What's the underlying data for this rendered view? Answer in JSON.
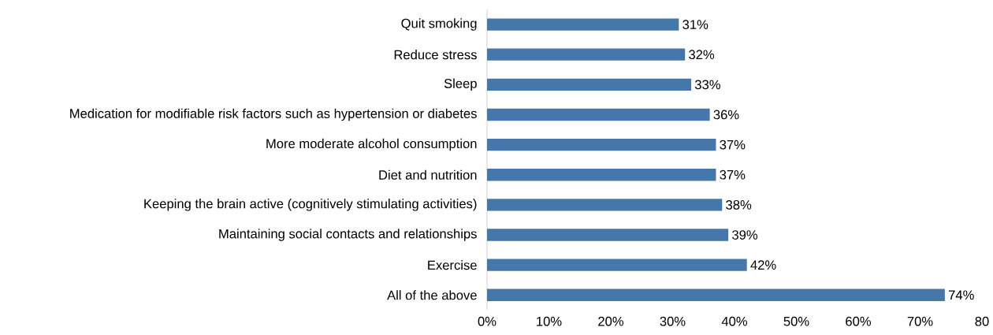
{
  "chart_data": {
    "type": "bar",
    "orientation": "horizontal",
    "categories": [
      "Quit smoking",
      "Reduce stress",
      "Sleep",
      "Medication for modifiable risk factors such as hypertension or diabetes",
      "More moderate alcohol consumption",
      "Diet and nutrition",
      "Keeping the brain active (cognitively stimulating activities)",
      "Maintaining social contacts and relationships",
      "Exercise",
      "All of the above"
    ],
    "values": [
      31,
      32,
      33,
      36,
      37,
      37,
      38,
      39,
      42,
      74
    ],
    "value_labels": [
      "31%",
      "32%",
      "33%",
      "36%",
      "37%",
      "37%",
      "38%",
      "39%",
      "42%",
      "74%"
    ],
    "color": "#4677aa",
    "xlim": [
      0,
      80
    ],
    "xticks": [
      {
        "value": 0,
        "label": "0%"
      },
      {
        "value": 10,
        "label": "10%"
      },
      {
        "value": 20,
        "label": "20%"
      },
      {
        "value": 30,
        "label": "30%"
      },
      {
        "value": 40,
        "label": "40%"
      },
      {
        "value": 50,
        "label": "50%"
      },
      {
        "value": 60,
        "label": "60%"
      },
      {
        "value": 70,
        "label": "70%"
      },
      80
    ]
  }
}
